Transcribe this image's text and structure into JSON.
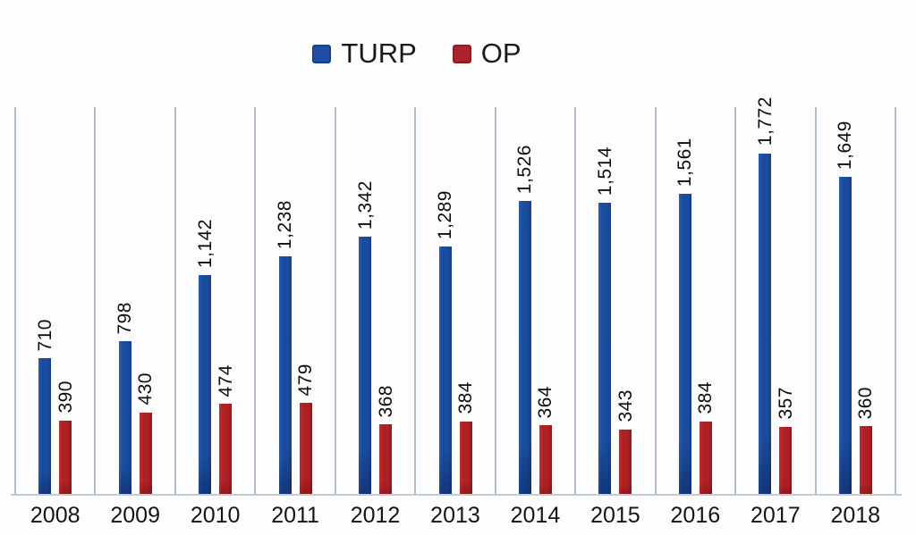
{
  "chart_data": {
    "type": "bar",
    "categories": [
      "2008",
      "2009",
      "2010",
      "2011",
      "2012",
      "2013",
      "2014",
      "2015",
      "2016",
      "2017",
      "2018"
    ],
    "series": [
      {
        "name": "TURP",
        "color": "#1a4c9e",
        "values": [
          710,
          798,
          1142,
          1238,
          1342,
          1289,
          1526,
          1514,
          1561,
          1772,
          1649
        ],
        "labels": [
          "710",
          "798",
          "1,142",
          "1,238",
          "1,342",
          "1,289",
          "1,526",
          "1,514",
          "1,561",
          "1,772",
          "1,649"
        ]
      },
      {
        "name": "OP",
        "color": "#af2025",
        "values": [
          390,
          430,
          474,
          479,
          368,
          384,
          364,
          343,
          384,
          357,
          360
        ],
        "labels": [
          "390",
          "430",
          "474",
          "479",
          "368",
          "384",
          "364",
          "343",
          "384",
          "357",
          "360"
        ]
      }
    ],
    "ylim": [
      0,
      2010
    ],
    "grid": "vertical-category-separators",
    "grid_color": "#aebcce",
    "value_labels": "rotated-90-above-bars",
    "legend_position": "top-center"
  },
  "legend": {
    "items": [
      {
        "label": "TURP",
        "color": "#1e4fa4"
      },
      {
        "label": "OP",
        "color": "#a8262b"
      }
    ]
  }
}
